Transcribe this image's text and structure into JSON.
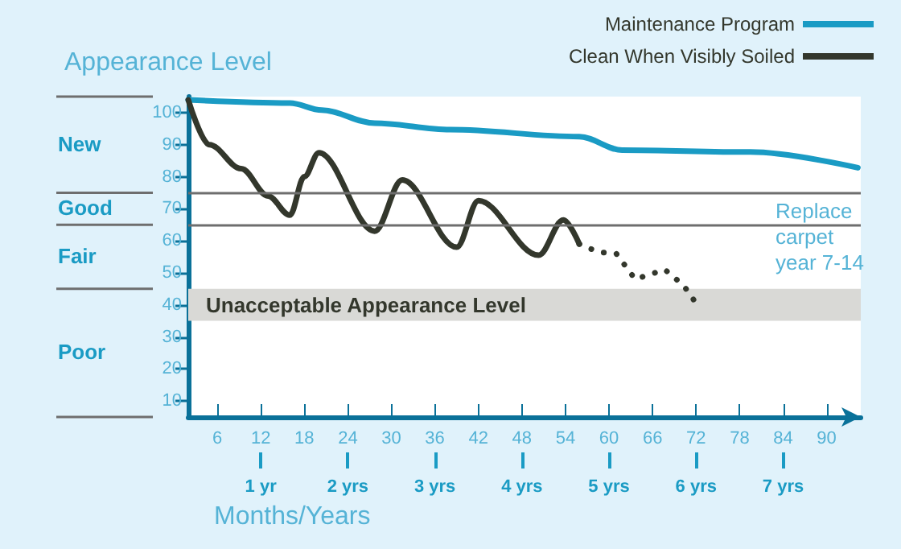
{
  "chart_data": {
    "type": "line",
    "title": "Appearance Level",
    "xlabel": "Months/Years",
    "xlim": [
      2,
      94.7
    ],
    "xticks": [
      6,
      12,
      18,
      24,
      30,
      36,
      42,
      48,
      54,
      60,
      66,
      72,
      78,
      84,
      90
    ],
    "x2lim": [
      0.1667,
      7.8917
    ],
    "x2ticks": [
      {
        "value": 1,
        "label": "1 yr"
      },
      {
        "value": 2,
        "label": "2 yrs"
      },
      {
        "value": 3,
        "label": "3 yrs"
      },
      {
        "value": 4,
        "label": "4 yrs"
      },
      {
        "value": 5,
        "label": "5 yrs"
      },
      {
        "value": 6,
        "label": "6 yrs"
      },
      {
        "value": 7,
        "label": "7 yrs"
      }
    ],
    "ylim": [
      5,
      105
    ],
    "yticks": [
      10,
      20,
      30,
      40,
      50,
      60,
      70,
      80,
      90,
      100
    ],
    "series": [
      {
        "name": "Maintenance Program",
        "color": "#1a9bc4",
        "x": [
          2,
          16,
          20.4,
          27.7,
          38.1,
          55.9,
          61.8,
          79.5,
          94.3
        ],
        "values": [
          104,
          103,
          100.8,
          96.7,
          94.7,
          92.5,
          88.3,
          87.7,
          82.8
        ]
      },
      {
        "name": "Clean When Visibly Soiled",
        "color": "#33372c",
        "x": [
          2,
          4.9,
          9.3,
          13,
          16,
          18,
          20,
          27.7,
          31.5,
          39,
          42,
          50.3,
          53.7,
          55.9
        ],
        "values": [
          104,
          90,
          82.5,
          74,
          68,
          80,
          87.5,
          63,
          79,
          58,
          72.5,
          55.5,
          66.5,
          59
        ]
      },
      {
        "color": "#33372c",
        "line_style": "dotted",
        "x": [
          55.9,
          58.5,
          61,
          63.6,
          67.7,
          70.3,
          72
        ],
        "values": [
          59,
          56.5,
          56,
          48,
          51,
          46,
          40.5
        ]
      }
    ],
    "ref_lines": [
      {
        "axis": "y",
        "value": 75
      },
      {
        "axis": "y",
        "value": 65
      }
    ],
    "bands": [
      {
        "axis": "y",
        "from": 35,
        "to": 45,
        "label": "Unacceptable Appearance Level",
        "color": "#d9d9d6"
      }
    ],
    "annotations": [
      "Replace carpet year 7-14",
      "New",
      "Good",
      "Fair",
      "Poor"
    ],
    "legend": "top right",
    "grid": false,
    "marker": "none",
    "line_style": "solid"
  }
}
